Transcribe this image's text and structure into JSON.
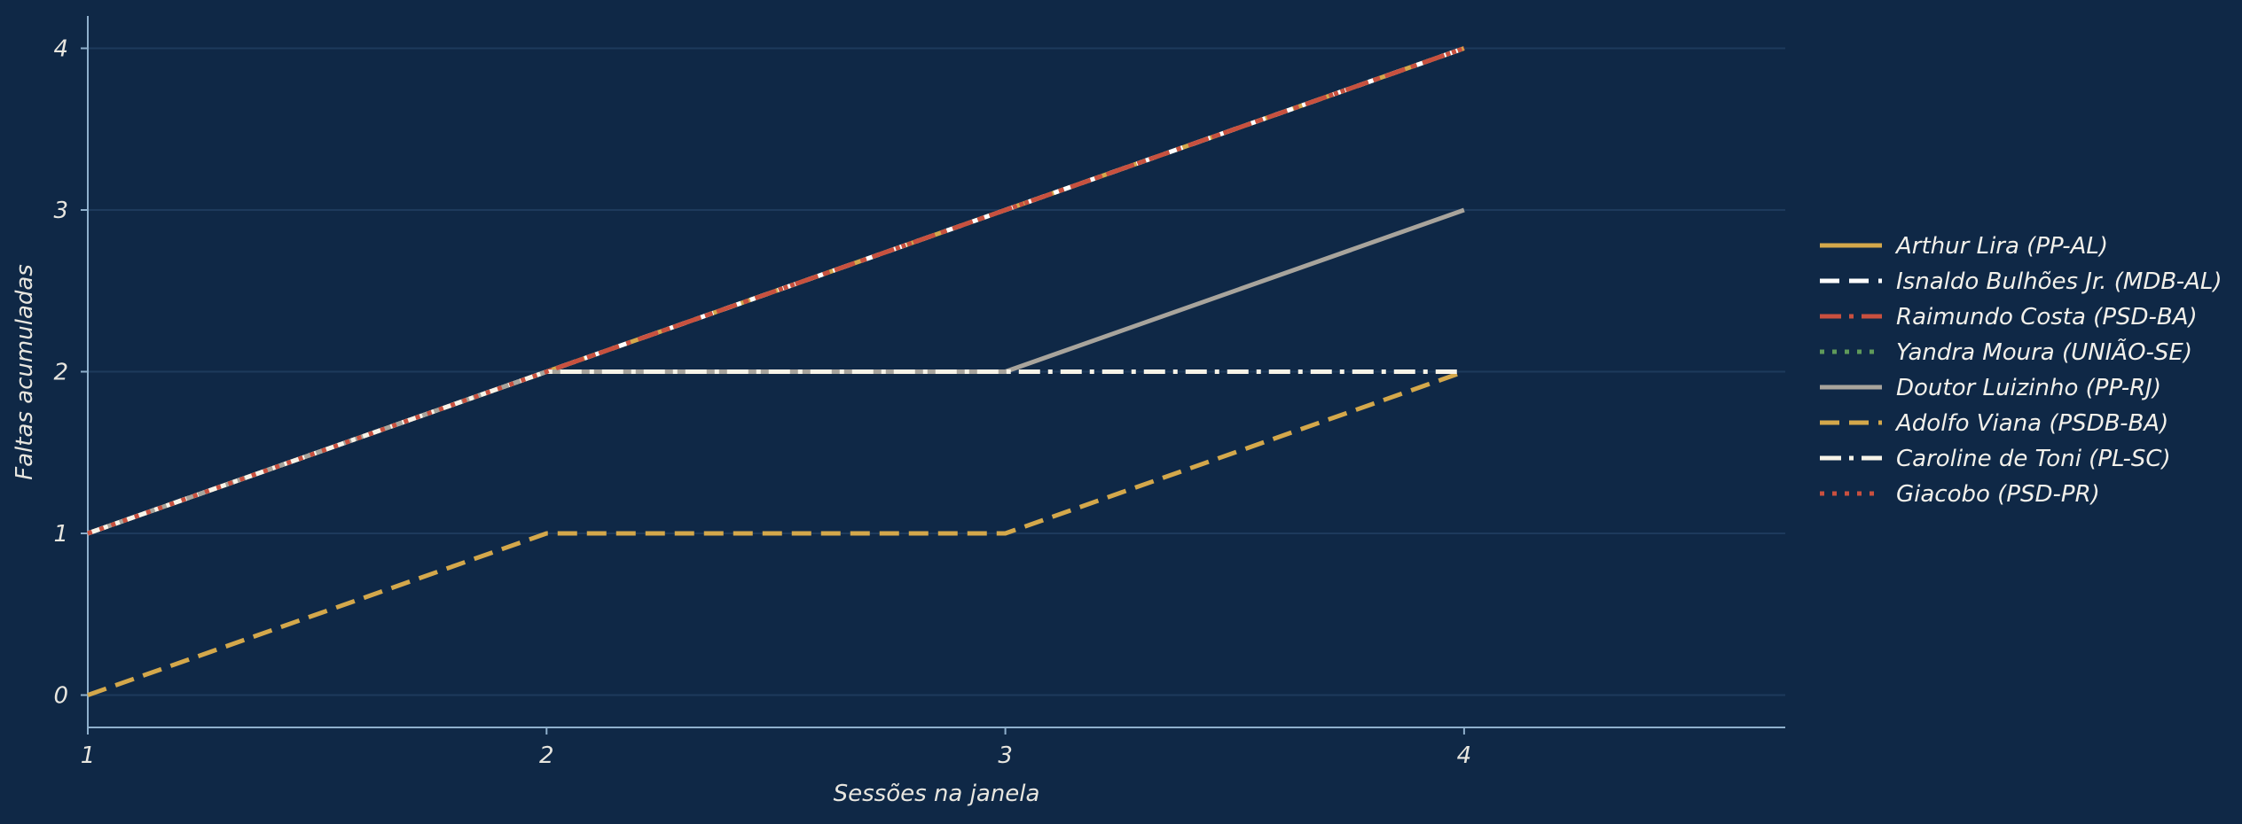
{
  "chart_data": {
    "type": "line",
    "title": "",
    "xlabel": "Sessões na janela",
    "ylabel": "Faltas acumuladas",
    "x": [
      1,
      2,
      3,
      4
    ],
    "xticks": [
      1,
      2,
      3,
      4
    ],
    "yticks": [
      0,
      1,
      2,
      3,
      4
    ],
    "xlim": [
      1,
      4.7
    ],
    "ylim": [
      -0.2,
      4.2
    ],
    "grid": "horizontal",
    "legend_position": "right",
    "background": "#0f2846",
    "series": [
      {
        "name": "Arthur Lira (PP-AL)",
        "values": [
          1,
          2,
          3,
          4
        ],
        "color": "#d4a84b",
        "style": "solid"
      },
      {
        "name": "Isnaldo Bulhões Jr. (MDB-AL)",
        "values": [
          1,
          2,
          3,
          4
        ],
        "color": "#ffffff",
        "style": "dashed"
      },
      {
        "name": "Raimundo Costa (PSD-BA)",
        "values": [
          1,
          2,
          3,
          4
        ],
        "color": "#c9503f",
        "style": "dashdot"
      },
      {
        "name": "Yandra Moura (UNIÃO-SE)",
        "values": [
          1,
          2,
          3,
          4
        ],
        "color": "#5f9a5a",
        "style": "dotted"
      },
      {
        "name": "Doutor Luizinho (PP-RJ)",
        "values": [
          1,
          2,
          2,
          3
        ],
        "color": "#a8a49c",
        "style": "solid"
      },
      {
        "name": "Adolfo Viana (PSDB-BA)",
        "values": [
          0,
          1,
          1,
          2
        ],
        "color": "#d4a84b",
        "style": "dashed"
      },
      {
        "name": "Caroline de Toni (PL-SC)",
        "values": [
          1,
          2,
          2,
          2
        ],
        "color": "#f7f3e8",
        "style": "dashdot"
      },
      {
        "name": "Giacobo (PSD-PR)",
        "values": [
          1,
          2,
          3,
          4
        ],
        "color": "#c9503f",
        "style": "dotted"
      }
    ]
  }
}
